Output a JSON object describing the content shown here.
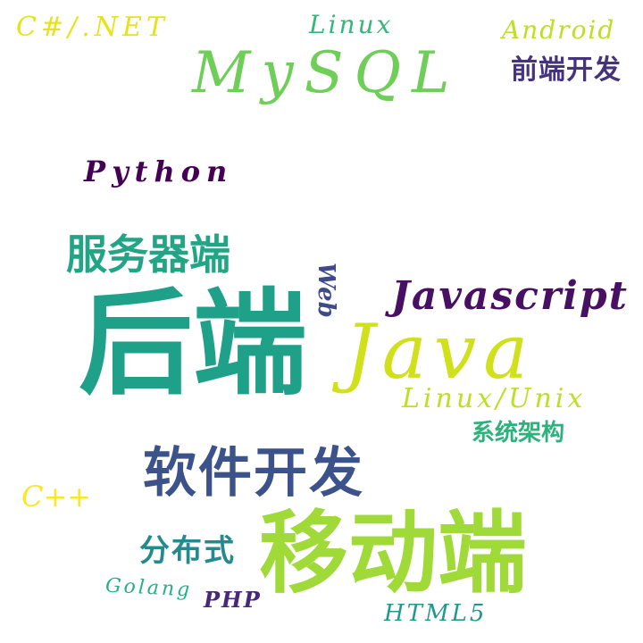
{
  "words": [
    {
      "key": "csharp",
      "text": "C#/.NET",
      "color": "#e6e419"
    },
    {
      "key": "linux",
      "text": "Linux",
      "color": "#35b779"
    },
    {
      "key": "android",
      "text": "Android",
      "color": "#bddf26"
    },
    {
      "key": "mysql",
      "text": "MySQL",
      "color": "#6ece58"
    },
    {
      "key": "frontend",
      "text": "前端开发",
      "color": "#46337e"
    },
    {
      "key": "python",
      "text": "Python",
      "color": "#440154"
    },
    {
      "key": "server",
      "text": "服务器端",
      "color": "#21a585"
    },
    {
      "key": "web",
      "text": "Web",
      "color": "#3e4a89"
    },
    {
      "key": "javascript",
      "text": "Javascript",
      "color": "#471063"
    },
    {
      "key": "backend",
      "text": "后端",
      "color": "#1fa088"
    },
    {
      "key": "java",
      "text": "Java",
      "color": "#d0e11c"
    },
    {
      "key": "linuxunix",
      "text": "Linux/Unix",
      "color": "#bddf26"
    },
    {
      "key": "sysarch",
      "text": "系统架构",
      "color": "#2db27d"
    },
    {
      "key": "software",
      "text": "软件开发",
      "color": "#3b528b"
    },
    {
      "key": "cpp",
      "text": "C++",
      "color": "#fde725"
    },
    {
      "key": "distributed",
      "text": "分布式",
      "color": "#238a8d"
    },
    {
      "key": "mobile",
      "text": "移动端",
      "color": "#a0da39"
    },
    {
      "key": "golang",
      "text": "Golang",
      "color": "#28ae80"
    },
    {
      "key": "php",
      "text": "PHP",
      "color": "#482878"
    },
    {
      "key": "html5",
      "text": "HTML5",
      "color": "#1f9a8a"
    }
  ]
}
